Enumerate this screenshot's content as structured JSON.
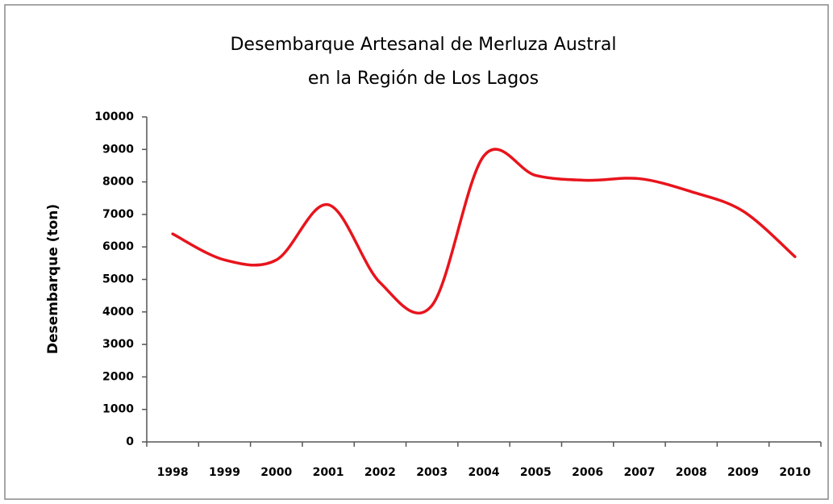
{
  "chart_data": {
    "type": "line",
    "title": [
      "Desembarque Artesanal de Merluza Austral",
      "en la Región de Los Lagos"
    ],
    "y_label": "Desembarque (ton)",
    "categories": [
      "1998",
      "1999",
      "2000",
      "2001",
      "2002",
      "2003",
      "2004",
      "2005",
      "2006",
      "2007",
      "2008",
      "2009",
      "2010"
    ],
    "series": [
      {
        "name": "Desembarque",
        "color": "#e8141c",
        "values": [
          6400,
          5600,
          5600,
          7300,
          4900,
          4200,
          8800,
          8200,
          8050,
          8100,
          7700,
          7100,
          5700
        ]
      }
    ],
    "ylim": [
      0,
      10000
    ],
    "yticks": [
      0,
      1000,
      2000,
      3000,
      4000,
      5000,
      6000,
      7000,
      8000,
      9000,
      10000
    ],
    "smooth": true,
    "grid": false
  }
}
